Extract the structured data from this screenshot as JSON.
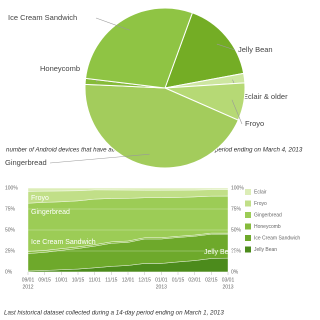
{
  "chart_data": [
    {
      "type": "pie",
      "categories": [
        "Jelly Bean",
        "Eclair & older",
        "Froyo",
        "Gingerbread",
        "Honeycomb",
        "Ice Cream Sandwich"
      ],
      "values": [
        16.5,
        1.9,
        7.6,
        44.1,
        1.2,
        28.6
      ],
      "colors": [
        "#74ad25",
        "#cde6a0",
        "#b6d975",
        "#a3cc5c",
        "#86bb39",
        "#8fc444"
      ],
      "caption": "number of Android devices that have accessed Google Play within a 14-day period ending on March 4, 2013"
    },
    {
      "type": "area",
      "stacked": true,
      "categories": [
        "09/01",
        "09/15",
        "10/01",
        "10/15",
        "11/01",
        "11/15",
        "12/01",
        "12/15",
        "01/01",
        "01/15",
        "02/01",
        "02/15",
        "03/01"
      ],
      "x_year_labels": [
        "2012",
        null,
        null,
        null,
        null,
        null,
        null,
        null,
        "2013",
        null,
        null,
        null,
        "2013"
      ],
      "series": [
        {
          "name": "Jelly Bean",
          "color": "#4c8b1c",
          "values": [
            1.2,
            1.8,
            2.7,
            3.5,
            5.0,
            6.7,
            7.8,
            10.2,
            10.2,
            12.0,
            13.6,
            16.1,
            16.5
          ]
        },
        {
          "name": "Ice Cream Sandwich",
          "color": "#6ea92b",
          "values": [
            20.8,
            21.6,
            23.1,
            24.5,
            25.8,
            27.5,
            27.5,
            29.1,
            29.1,
            29.1,
            29.0,
            28.9,
            28.6
          ]
        },
        {
          "name": "Honeycomb",
          "color": "#86bb3c",
          "values": [
            2.4,
            2.3,
            2.0,
            1.9,
            1.8,
            1.7,
            1.6,
            1.5,
            1.5,
            1.4,
            1.4,
            1.3,
            1.2
          ]
        },
        {
          "name": "Gingerbread",
          "color": "#9ccc56",
          "values": [
            57.5,
            57.2,
            55.8,
            54.8,
            54.2,
            51.6,
            50.8,
            47.6,
            47.6,
            46.3,
            45.4,
            44.0,
            44.1
          ]
        },
        {
          "name": "Froyo",
          "color": "#c1df88",
          "values": [
            14.0,
            13.4,
            12.9,
            12.0,
            11.0,
            10.2,
            9.9,
            9.0,
            9.0,
            8.7,
            8.2,
            7.7,
            7.6
          ]
        },
        {
          "name": "Eclair",
          "color": "#dcedb7",
          "values": [
            4.1,
            3.7,
            3.5,
            3.3,
            2.2,
            2.3,
            2.4,
            2.6,
            2.6,
            2.5,
            2.4,
            2.0,
            2.0
          ]
        }
      ],
      "ylim": [
        0,
        100
      ],
      "yticks": [
        {
          "value": 0,
          "label": "0%"
        },
        {
          "value": 25,
          "label": "25%"
        },
        {
          "value": 50,
          "label": "50%"
        },
        {
          "value": 75,
          "label": "75%"
        },
        {
          "value": 100,
          "label": "100%"
        }
      ],
      "grid": true,
      "caption": "Last historical dataset collected during a 14-day period ending on March 1, 2013"
    }
  ]
}
